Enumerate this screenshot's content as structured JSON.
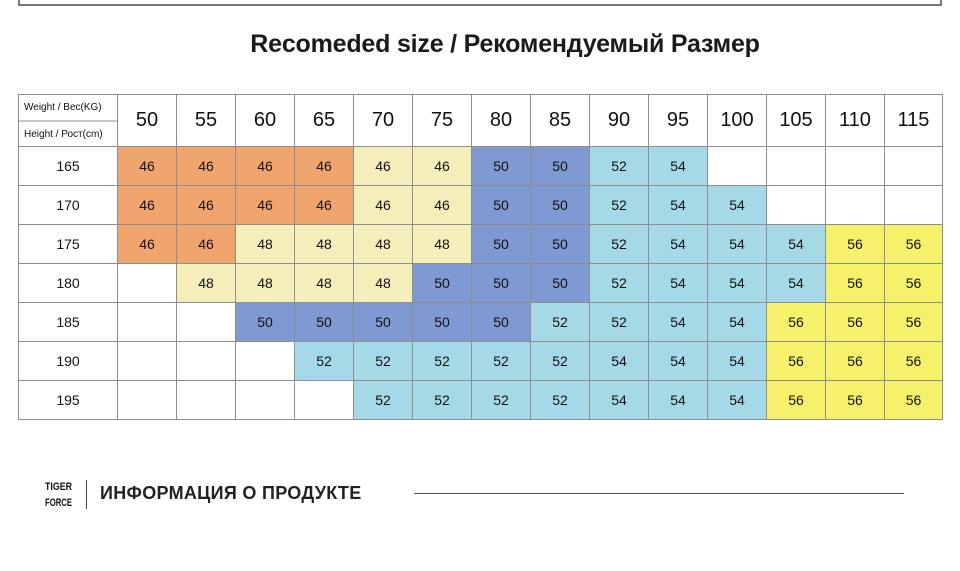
{
  "title": "Recomeded size / Рекомендуемый Размер",
  "table": {
    "corner_weight": "Weight / Вес(KG)",
    "corner_height": "Height / Рост(cm)",
    "weights": [
      "50",
      "55",
      "60",
      "65",
      "70",
      "75",
      "80",
      "85",
      "90",
      "95",
      "100",
      "105",
      "110",
      "115"
    ],
    "rows": [
      {
        "height": "165",
        "cells": [
          [
            "46",
            "orange"
          ],
          [
            "46",
            "orange"
          ],
          [
            "46",
            "orange"
          ],
          [
            "46",
            "orange"
          ],
          [
            "46",
            "cream"
          ],
          [
            "46",
            "cream"
          ],
          [
            "50",
            "blue"
          ],
          [
            "50",
            "blue"
          ],
          [
            "52",
            "light"
          ],
          [
            "54",
            "light"
          ],
          [
            "",
            "empty"
          ],
          [
            "",
            "empty"
          ],
          [
            "",
            "empty"
          ],
          [
            "",
            "empty"
          ]
        ]
      },
      {
        "height": "170",
        "cells": [
          [
            "46",
            "orange"
          ],
          [
            "46",
            "orange"
          ],
          [
            "46",
            "orange"
          ],
          [
            "46",
            "orange"
          ],
          [
            "46",
            "cream"
          ],
          [
            "46",
            "cream"
          ],
          [
            "50",
            "blue"
          ],
          [
            "50",
            "blue"
          ],
          [
            "52",
            "light"
          ],
          [
            "54",
            "light"
          ],
          [
            "54",
            "light"
          ],
          [
            "",
            "empty"
          ],
          [
            "",
            "empty"
          ],
          [
            "",
            "empty"
          ]
        ]
      },
      {
        "height": "175",
        "cells": [
          [
            "46",
            "orange"
          ],
          [
            "46",
            "orange"
          ],
          [
            "48",
            "cream"
          ],
          [
            "48",
            "cream"
          ],
          [
            "48",
            "cream"
          ],
          [
            "48",
            "cream"
          ],
          [
            "50",
            "blue"
          ],
          [
            "50",
            "blue"
          ],
          [
            "52",
            "light"
          ],
          [
            "54",
            "light"
          ],
          [
            "54",
            "light"
          ],
          [
            "54",
            "light"
          ],
          [
            "56",
            "yellow"
          ],
          [
            "56",
            "yellow"
          ]
        ]
      },
      {
        "height": "180",
        "cells": [
          [
            "",
            "empty"
          ],
          [
            "48",
            "cream"
          ],
          [
            "48",
            "cream"
          ],
          [
            "48",
            "cream"
          ],
          [
            "48",
            "cream"
          ],
          [
            "50",
            "blue"
          ],
          [
            "50",
            "blue"
          ],
          [
            "50",
            "blue"
          ],
          [
            "52",
            "light"
          ],
          [
            "54",
            "light"
          ],
          [
            "54",
            "light"
          ],
          [
            "54",
            "light"
          ],
          [
            "56",
            "yellow"
          ],
          [
            "56",
            "yellow"
          ]
        ]
      },
      {
        "height": "185",
        "cells": [
          [
            "",
            "empty"
          ],
          [
            "",
            "empty"
          ],
          [
            "50",
            "blue"
          ],
          [
            "50",
            "blue"
          ],
          [
            "50",
            "blue"
          ],
          [
            "50",
            "blue"
          ],
          [
            "50",
            "blue"
          ],
          [
            "52",
            "light"
          ],
          [
            "52",
            "light"
          ],
          [
            "54",
            "light"
          ],
          [
            "54",
            "light"
          ],
          [
            "56",
            "yellow"
          ],
          [
            "56",
            "yellow"
          ],
          [
            "56",
            "yellow"
          ]
        ]
      },
      {
        "height": "190",
        "cells": [
          [
            "",
            "empty"
          ],
          [
            "",
            "empty"
          ],
          [
            "",
            "empty"
          ],
          [
            "52",
            "light"
          ],
          [
            "52",
            "light"
          ],
          [
            "52",
            "light"
          ],
          [
            "52",
            "light"
          ],
          [
            "52",
            "light"
          ],
          [
            "54",
            "light"
          ],
          [
            "54",
            "light"
          ],
          [
            "54",
            "light"
          ],
          [
            "56",
            "yellow"
          ],
          [
            "56",
            "yellow"
          ],
          [
            "56",
            "yellow"
          ]
        ]
      },
      {
        "height": "195",
        "cells": [
          [
            "",
            "empty"
          ],
          [
            "",
            "empty"
          ],
          [
            "",
            "empty"
          ],
          [
            "",
            "empty"
          ],
          [
            "52",
            "light"
          ],
          [
            "52",
            "light"
          ],
          [
            "52",
            "light"
          ],
          [
            "52",
            "light"
          ],
          [
            "54",
            "light"
          ],
          [
            "54",
            "light"
          ],
          [
            "54",
            "light"
          ],
          [
            "56",
            "yellow"
          ],
          [
            "56",
            "yellow"
          ],
          [
            "56",
            "yellow"
          ]
        ]
      }
    ]
  },
  "colors": {
    "orange": "#f0a56e",
    "cream": "#f4eebb",
    "blue": "#7f9ad2",
    "light": "#a6d9e8",
    "yellow": "#f6f16b"
  },
  "footer": {
    "logo_top": "TIGER",
    "logo_bottom": "FORCE",
    "info_label": "ИНФОРМАЦИЯ О ПРОДУКТЕ"
  }
}
